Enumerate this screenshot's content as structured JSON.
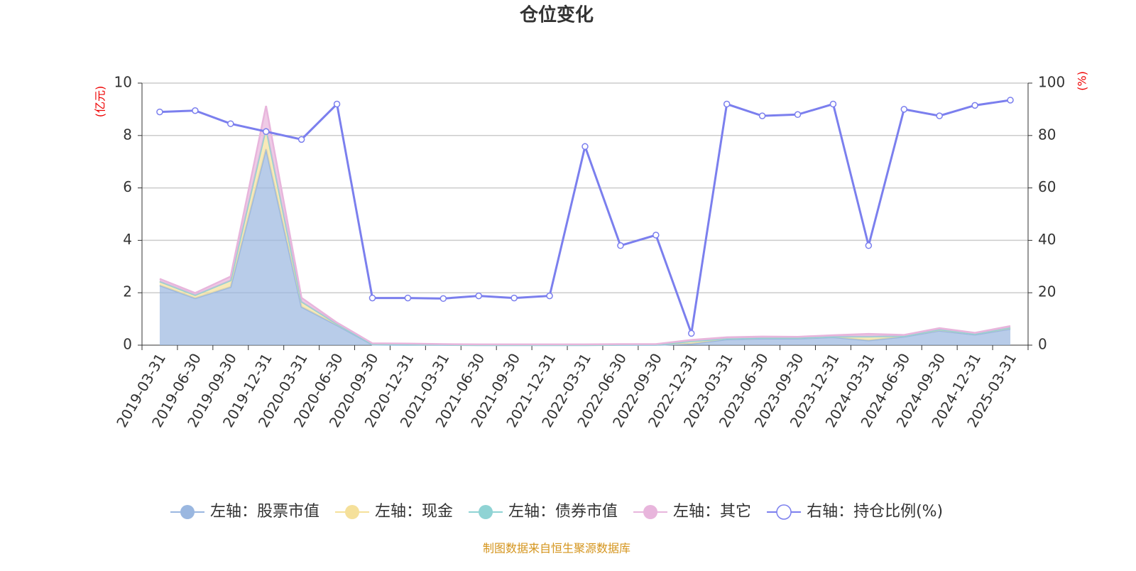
{
  "chart_data": {
    "type": "stacked-area-line",
    "title": "仓位变化",
    "y_label": "(亿元)",
    "y2_label": "(%)",
    "source": "制图数据来自恒生聚源数据库",
    "categories": [
      "2019-03-31",
      "2019-06-30",
      "2019-09-30",
      "2019-12-31",
      "2020-03-31",
      "2020-06-30",
      "2020-09-30",
      "2020-12-31",
      "2021-03-31",
      "2021-06-30",
      "2021-09-30",
      "2021-12-31",
      "2022-03-31",
      "2022-06-30",
      "2022-09-30",
      "2022-12-31",
      "2023-03-31",
      "2023-06-30",
      "2023-09-30",
      "2023-12-31",
      "2024-03-31",
      "2024-06-30",
      "2024-09-30",
      "2024-12-31",
      "2025-03-31"
    ],
    "ylim": [
      0,
      10
    ],
    "yticks": [
      0,
      2,
      4,
      6,
      8,
      10
    ],
    "y2lim": [
      0,
      100
    ],
    "y2ticks": [
      0,
      20,
      40,
      60,
      80,
      100
    ],
    "grid": true,
    "series": [
      {
        "name": "左轴：股票市值",
        "color": "#9ab7e0",
        "values": [
          2.28,
          1.79,
          2.22,
          7.48,
          1.46,
          0.76,
          0.02,
          0.01,
          0.01,
          0.0,
          0.0,
          0.0,
          0.0,
          0.01,
          0.01,
          0.05,
          0.22,
          0.25,
          0.25,
          0.3,
          0.18,
          0.32,
          0.55,
          0.4,
          0.62
        ]
      },
      {
        "name": "左轴：现金",
        "color": "#f5e09a",
        "values": [
          0.15,
          0.12,
          0.25,
          0.8,
          0.2,
          0.05,
          0.02,
          0.02,
          0.01,
          0.01,
          0.01,
          0.01,
          0.01,
          0.01,
          0.01,
          0.1,
          0.03,
          0.03,
          0.03,
          0.03,
          0.15,
          0.03,
          0.05,
          0.03,
          0.05
        ]
      },
      {
        "name": "左轴：债券市值",
        "color": "#8fd3d4",
        "values": [
          0,
          0,
          0,
          0,
          0,
          0,
          0,
          0,
          0,
          0,
          0,
          0,
          0,
          0,
          0,
          0,
          0,
          0,
          0,
          0,
          0,
          0,
          0,
          0,
          0
        ]
      },
      {
        "name": "左轴：其它",
        "color": "#e8b5dc",
        "values": [
          0.1,
          0.08,
          0.15,
          0.85,
          0.15,
          0.05,
          0.03,
          0.03,
          0.02,
          0.02,
          0.02,
          0.02,
          0.02,
          0.02,
          0.02,
          0.05,
          0.05,
          0.05,
          0.04,
          0.05,
          0.1,
          0.04,
          0.05,
          0.04,
          0.06
        ]
      },
      {
        "name": "右轴：持仓比例(%)",
        "color": "#7b7fee",
        "axis": "y2",
        "values": [
          89,
          89.5,
          84.5,
          81.5,
          78.5,
          92,
          18,
          18,
          17.8,
          18.8,
          18,
          18.8,
          75.8,
          38,
          42,
          4.5,
          92,
          87.5,
          88,
          92,
          38,
          90,
          87.5,
          91.5,
          93.5
        ]
      }
    ]
  }
}
